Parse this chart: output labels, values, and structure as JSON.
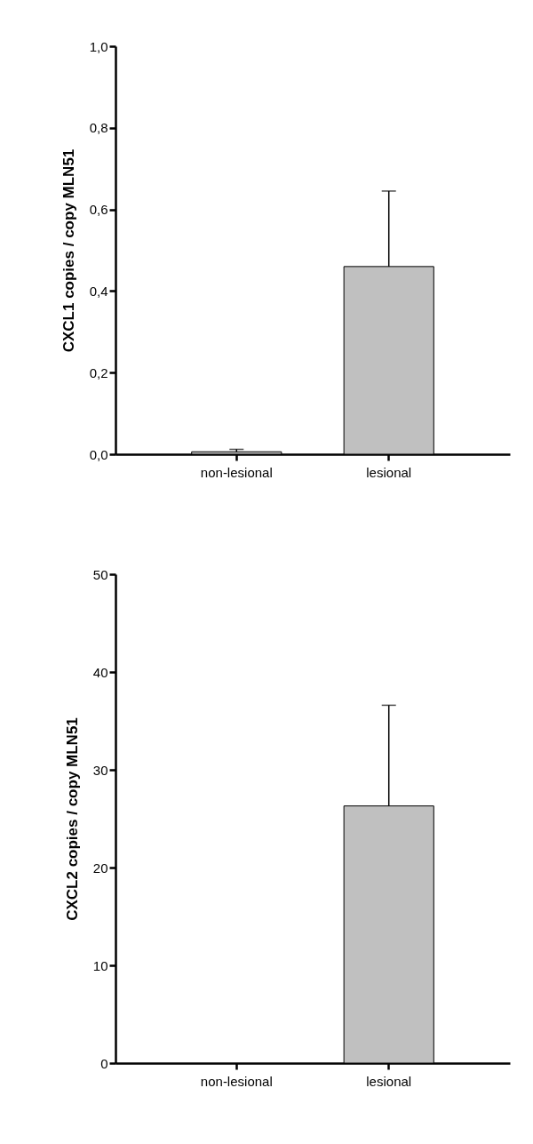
{
  "chart_data": [
    {
      "type": "bar",
      "ylabel": "CXCL1 copies / copy MLN51",
      "categories": [
        "non-lesional",
        "lesional"
      ],
      "values": [
        0.006,
        0.46
      ],
      "color": "#c0c0c0",
      "errors": [
        [
          0.006,
          0.012
        ],
        [
          0.46,
          0.645
        ]
      ],
      "ylim": [
        0,
        1
      ],
      "yticks": [
        {
          "value": 0,
          "label": "0,0"
        },
        {
          "value": 0.2,
          "label": "0,2"
        },
        {
          "value": 0.4,
          "label": "0,4"
        },
        {
          "value": 0.6,
          "label": "0,6"
        },
        {
          "value": 0.8,
          "label": "0,8"
        },
        {
          "value": 1,
          "label": "1,0"
        }
      ],
      "grid": false
    },
    {
      "type": "bar",
      "ylabel": "CXCL2 copies / copy MLN51",
      "categories": [
        "non-lesional",
        "lesional"
      ],
      "values": [
        null,
        26.3
      ],
      "color": "#c0c0c0",
      "errors": [
        null,
        [
          26.3,
          36.6
        ]
      ],
      "ylim": [
        0,
        50
      ],
      "yticks": [
        0,
        10,
        20,
        30,
        40,
        50
      ],
      "grid": false
    }
  ]
}
